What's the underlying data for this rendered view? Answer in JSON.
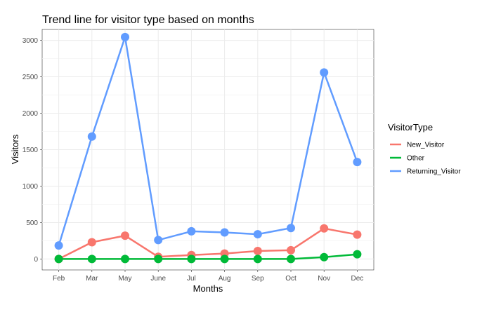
{
  "chart_data": {
    "type": "line",
    "title": "Trend line for visitor type based on months",
    "xlabel": "Months",
    "ylabel": "Visitors",
    "categories": [
      "Feb",
      "Mar",
      "May",
      "June",
      "Jul",
      "Aug",
      "Sep",
      "Oct",
      "Nov",
      "Dec"
    ],
    "ylim": [
      -150,
      3150
    ],
    "yticks": [
      0,
      500,
      1000,
      1500,
      2000,
      2500,
      3000
    ],
    "grid": true,
    "legend": {
      "title": "VisitorType",
      "position": "right"
    },
    "series": [
      {
        "name": "New_Visitor",
        "color": "#F8766D",
        "values": [
          0,
          230,
          320,
          30,
          55,
          75,
          110,
          120,
          420,
          335
        ]
      },
      {
        "name": "Other",
        "color": "#00BA38",
        "values": [
          0,
          0,
          0,
          0,
          0,
          0,
          0,
          0,
          25,
          65
        ]
      },
      {
        "name": "Returning_Visitor",
        "color": "#619CFF",
        "values": [
          185,
          1680,
          3045,
          260,
          380,
          365,
          340,
          425,
          2560,
          1330
        ]
      }
    ]
  }
}
